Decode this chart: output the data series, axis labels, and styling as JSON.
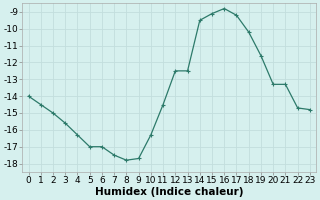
{
  "x": [
    0,
    1,
    2,
    3,
    4,
    5,
    6,
    7,
    8,
    9,
    10,
    11,
    12,
    13,
    14,
    15,
    16,
    17,
    18,
    19,
    20,
    21,
    22,
    23
  ],
  "y": [
    -14.0,
    -14.5,
    -15.0,
    -15.6,
    -16.3,
    -17.0,
    -17.0,
    -17.5,
    -17.8,
    -17.7,
    -16.3,
    -14.5,
    -12.5,
    -12.5,
    -9.5,
    -9.1,
    -8.8,
    -9.2,
    -10.2,
    -11.6,
    -13.3,
    -13.3,
    -14.7,
    -14.8
  ],
  "line_color": "#2d7a6a",
  "marker": "+",
  "marker_size": 3,
  "marker_lw": 0.8,
  "bg_color": "#d6f0ee",
  "grid_color_major": "#c2dedd",
  "grid_color_minor": "#c2dedd",
  "xlabel": "Humidex (Indice chaleur)",
  "xlim": [
    -0.5,
    23.5
  ],
  "ylim": [
    -18.5,
    -8.5
  ],
  "yticks": [
    -18,
    -17,
    -16,
    -15,
    -14,
    -13,
    -12,
    -11,
    -10,
    -9
  ],
  "xticks": [
    0,
    1,
    2,
    3,
    4,
    5,
    6,
    7,
    8,
    9,
    10,
    11,
    12,
    13,
    14,
    15,
    16,
    17,
    18,
    19,
    20,
    21,
    22,
    23
  ],
  "xlabel_fontsize": 7.5,
  "tick_fontsize": 6.5,
  "linewidth": 0.9,
  "figsize": [
    3.2,
    2.0
  ],
  "dpi": 100
}
